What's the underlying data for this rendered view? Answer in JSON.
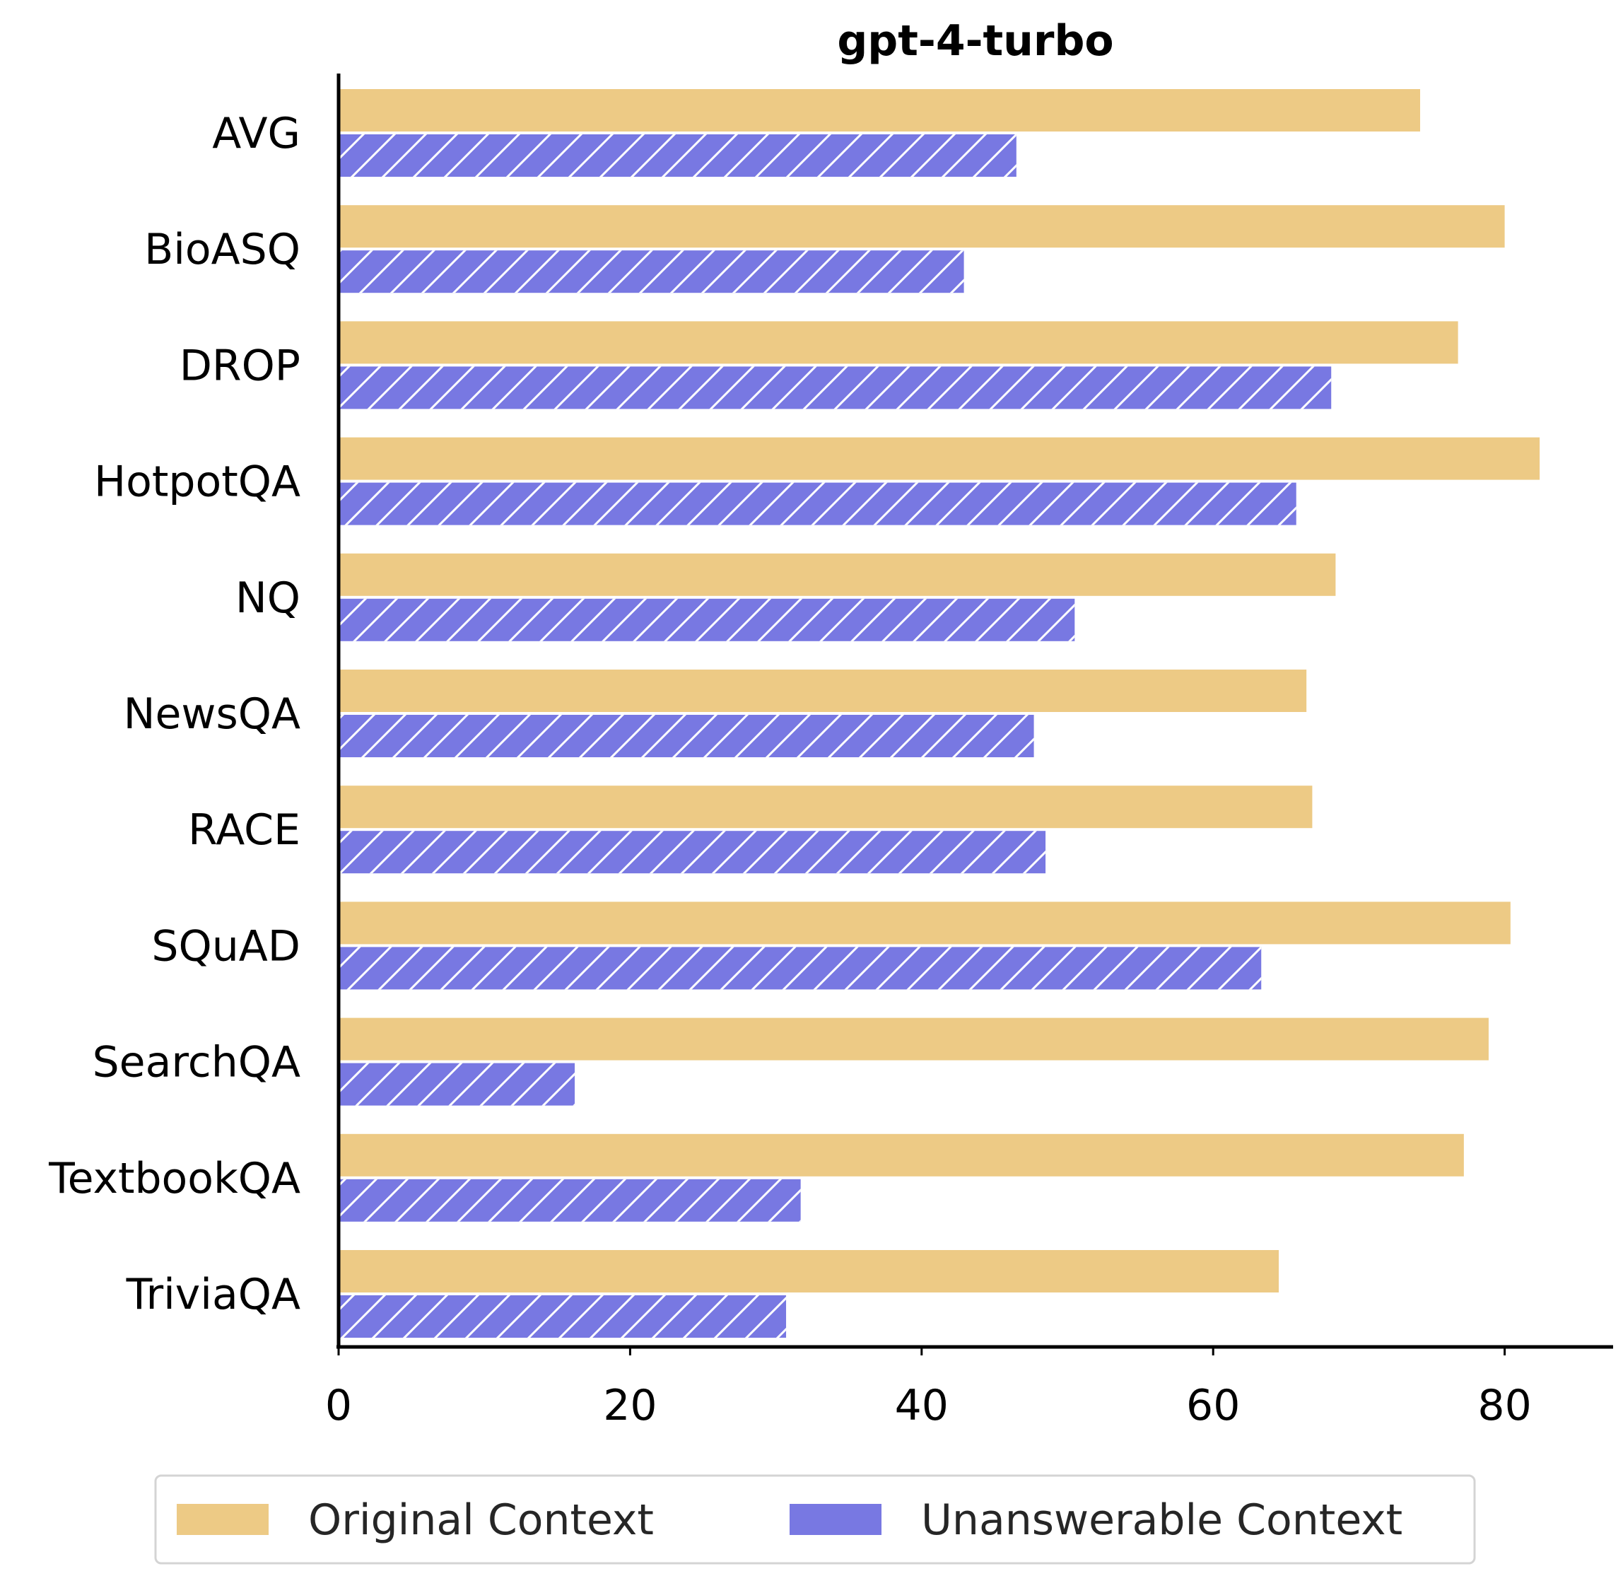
{
  "chart_data": {
    "type": "bar",
    "orientation": "horizontal",
    "title": "gpt-4-turbo",
    "xlabel": "",
    "ylabel": "",
    "xlim": [
      0,
      87
    ],
    "xticks": [
      0,
      20,
      40,
      60,
      80
    ],
    "grid": false,
    "legend_position": "bottom-center",
    "categories": [
      "AVG",
      "BioASQ",
      "DROP",
      "HotpotQA",
      "NQ",
      "NewsQA",
      "RACE",
      "SQuAD",
      "SearchQA",
      "TextbookQA",
      "TriviaQA"
    ],
    "series": [
      {
        "name": "Original Context",
        "color": "#EDCA85",
        "pattern": "solid",
        "values": [
          74.2,
          80.0,
          76.8,
          82.4,
          68.4,
          66.4,
          66.8,
          80.4,
          78.9,
          77.2,
          64.5
        ]
      },
      {
        "name": "Unanswerable Context",
        "color": "#7878E2",
        "pattern": "hatch",
        "values": [
          46.5,
          42.9,
          68.1,
          65.7,
          50.5,
          47.7,
          48.5,
          63.3,
          16.2,
          31.7,
          30.7
        ]
      }
    ]
  }
}
